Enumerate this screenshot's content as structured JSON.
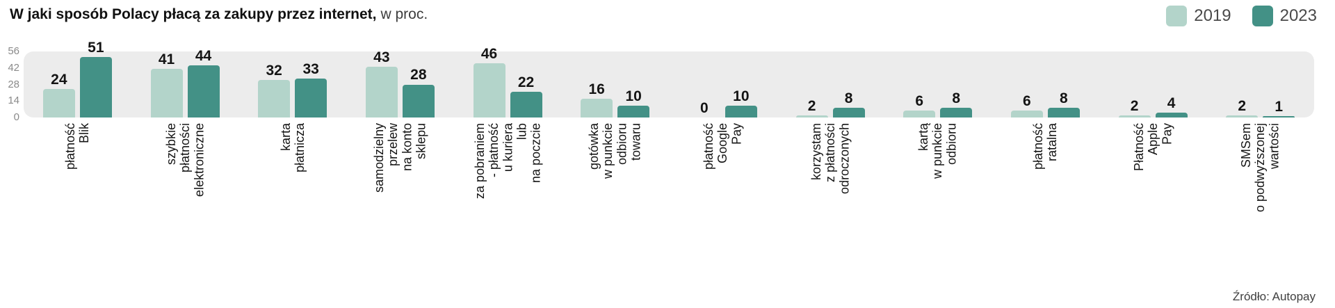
{
  "chart_data": {
    "type": "bar",
    "title": "W jaki sposób Polacy płacą za zakupy przez internet,",
    "subtitle": "w proc.",
    "source": "Źródło: Autopay",
    "ylim": [
      0,
      56
    ],
    "yticks": [
      0,
      14,
      28,
      42,
      56
    ],
    "legend": [
      {
        "name": "2019",
        "color": "#b3d4ca"
      },
      {
        "name": "2023",
        "color": "#439186"
      }
    ],
    "band_color": "#ececec",
    "categories": [
      "płatność\nBlik",
      "szybkie\npłatności\nelektroniczne",
      "karta\npłatnicza",
      "samodzielny\nprzelew\nna konto\nsklepu",
      "za pobraniem\n- płatność\nu kuriera\nlub\nna poczcie",
      "gotówka\nw punkcie\nodbioru\ntowaru",
      "płatność\nGoogle\nPay",
      "korzystam\nz płatności\nodroczonych",
      "kartą\nw punkcie\nodbioru",
      "płatność\nratalna",
      "Płatność\nApple\nPay",
      "SMSem\no podwyższonej\nwartości"
    ],
    "series": [
      {
        "name": "2019",
        "values": [
          24,
          41,
          32,
          43,
          46,
          16,
          0,
          2,
          6,
          6,
          2,
          2
        ]
      },
      {
        "name": "2023",
        "values": [
          51,
          44,
          33,
          28,
          22,
          10,
          10,
          8,
          8,
          8,
          4,
          1
        ]
      }
    ]
  }
}
